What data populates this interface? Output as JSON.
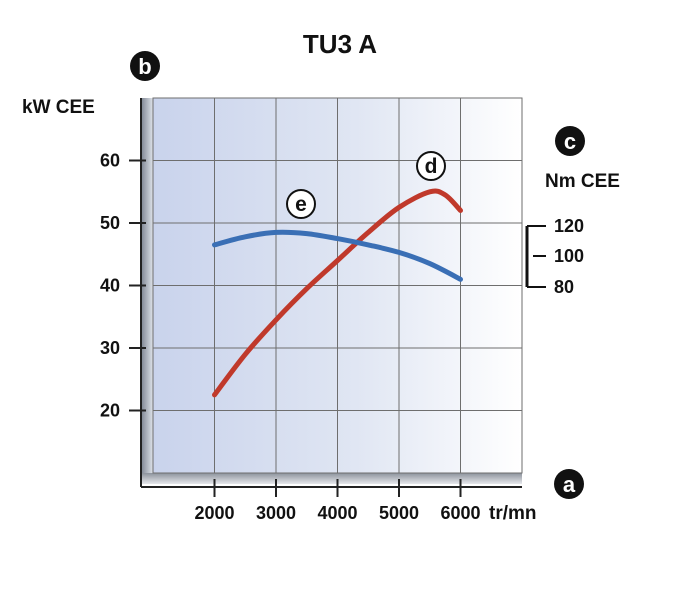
{
  "chart_data": {
    "type": "line",
    "title": "TU3 A",
    "x": [
      2000,
      3000,
      4000,
      5000,
      6000
    ],
    "x_tick_labels": [
      "2000",
      "3000",
      "4000",
      "5000",
      "6000"
    ],
    "x_unit": "tr/mn",
    "xlim": [
      1000,
      7000
    ],
    "left_axis": {
      "unit": "kW CEE",
      "marker": "b",
      "ticks": [
        "20",
        "30",
        "40",
        "50",
        "60"
      ],
      "ylim": [
        10,
        70
      ]
    },
    "right_axis": {
      "unit": "Nm CEE",
      "marker": "c",
      "ticks": [
        "120",
        "100",
        "80"
      ],
      "values": [
        120,
        100,
        80
      ]
    },
    "x_axis_marker": "a",
    "grid": true,
    "series": [
      {
        "label": "d",
        "color": "#c0392b",
        "axis": "left",
        "points": [
          [
            2000,
            22.5
          ],
          [
            2500,
            29
          ],
          [
            3000,
            34.5
          ],
          [
            3500,
            39.5
          ],
          [
            4000,
            44
          ],
          [
            4500,
            48.5
          ],
          [
            5000,
            52.5
          ],
          [
            5500,
            55
          ],
          [
            5750,
            54.5
          ],
          [
            6000,
            52
          ]
        ]
      },
      {
        "label": "e",
        "color": "#3a6fb5",
        "axis": "left",
        "points": [
          [
            2000,
            46.5
          ],
          [
            2500,
            47.8
          ],
          [
            3000,
            48.5
          ],
          [
            3500,
            48.3
          ],
          [
            4000,
            47.5
          ],
          [
            4500,
            46.5
          ],
          [
            5000,
            45.3
          ],
          [
            5500,
            43.5
          ],
          [
            6000,
            41
          ]
        ]
      }
    ]
  }
}
